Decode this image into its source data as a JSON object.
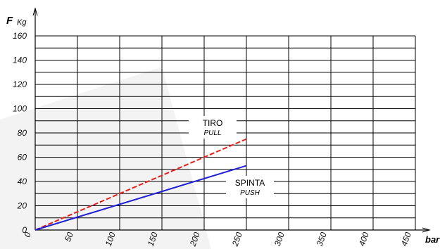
{
  "chart_data": {
    "type": "line",
    "ylabel_main": "F",
    "ylabel_unit": "Kg",
    "xlabel": "bar",
    "xlim": [
      0,
      450
    ],
    "ylim": [
      0,
      160
    ],
    "x_ticks": [
      0,
      50,
      100,
      150,
      200,
      250,
      300,
      350,
      400,
      450
    ],
    "y_ticks": [
      0,
      20,
      40,
      60,
      80,
      100,
      120,
      140,
      160
    ],
    "grid": true,
    "series": [
      {
        "name": "TIRO",
        "name_alt": "PULL",
        "color": "#e8201c",
        "dashed": true,
        "x": [
          0,
          250
        ],
        "y": [
          0,
          75
        ]
      },
      {
        "name": "SPINTA",
        "name_alt": "PUSH",
        "color": "#1f1fd6",
        "dashed": false,
        "x": [
          0,
          250
        ],
        "y": [
          0,
          53
        ]
      }
    ]
  }
}
